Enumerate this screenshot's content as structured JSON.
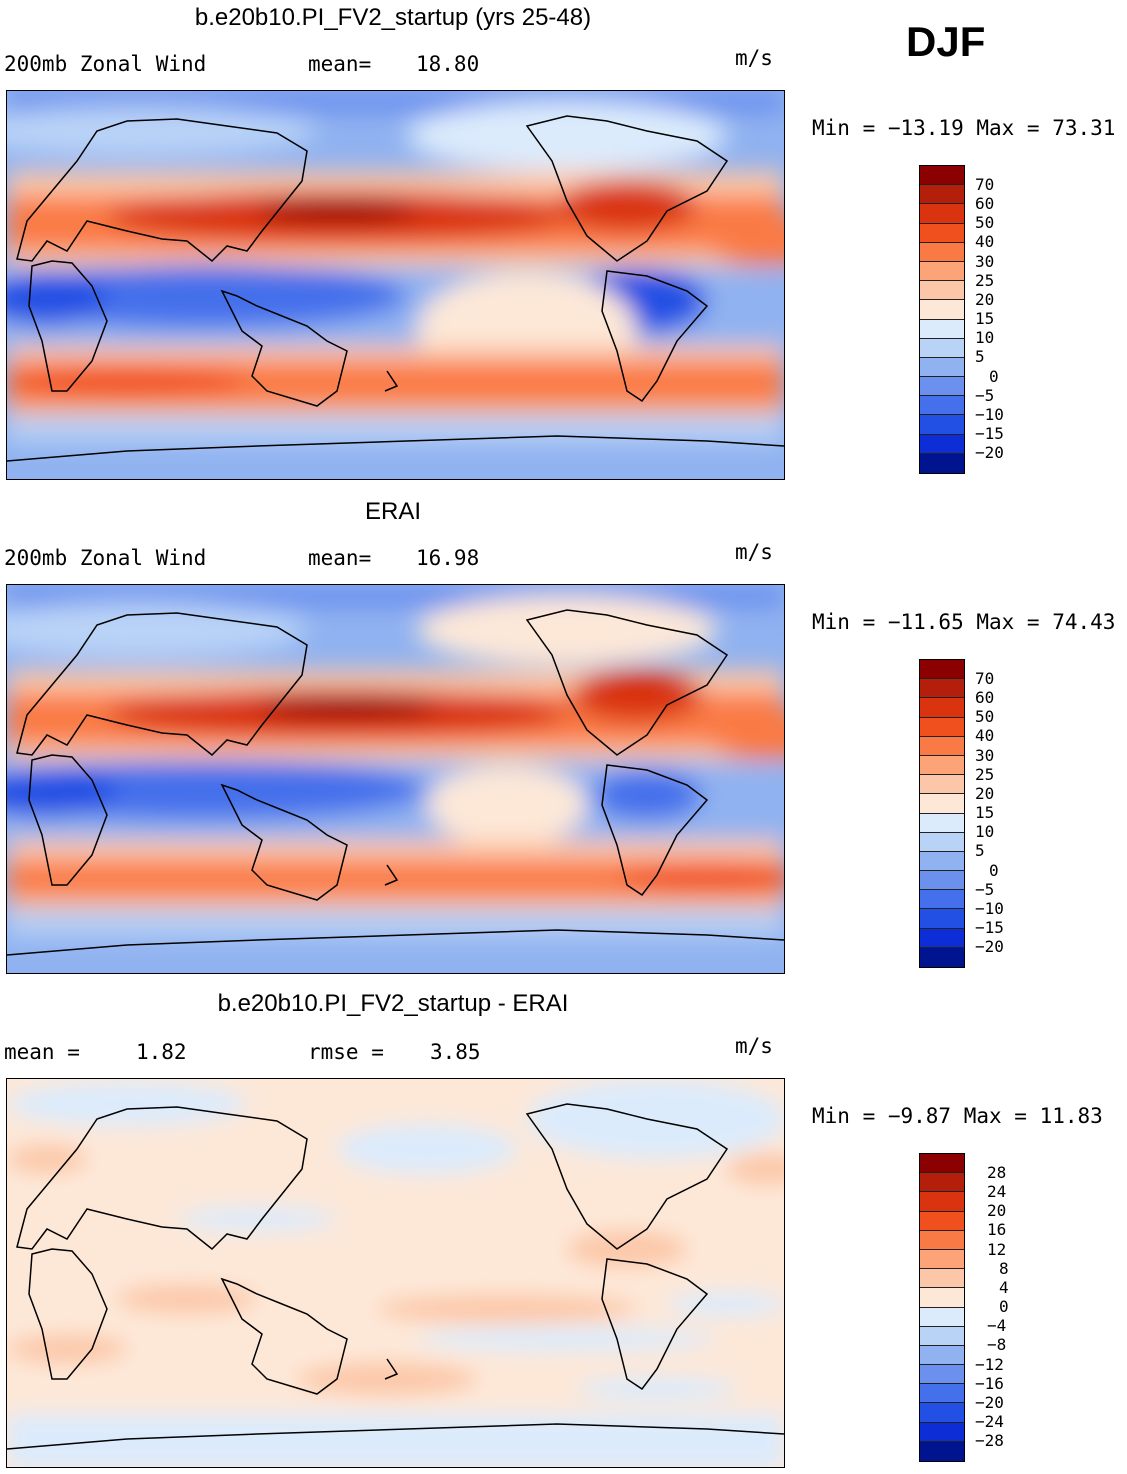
{
  "season_label": "DJF",
  "chart_data": [
    {
      "type": "heatmap",
      "title": "b.e20b10.PI_FV2_startup (yrs 25-48)",
      "left_label": "200mb Zonal Wind",
      "center_label": "mean=",
      "center_value": "18.80",
      "units": "m/s",
      "min_max": "Min = −13.19 Max =   73.31",
      "colorbar": {
        "levels": [
          "70",
          "60",
          "50",
          "40",
          "30",
          "25",
          "20",
          "15",
          "10",
          "5",
          "0",
          "−5",
          "−10",
          "−15",
          "−20"
        ],
        "colors": [
          "#8b0000",
          "#b31f0a",
          "#d93310",
          "#f0501e",
          "#fa7a45",
          "#fca377",
          "#fcc7a8",
          "#fde8d8",
          "#dcebfc",
          "#b9d3f7",
          "#90b2f0",
          "#6b90ee",
          "#4570eb",
          "#2350e4",
          "#0d2ed6",
          "#00148f"
        ]
      },
      "x_range_deg": [
        0,
        360
      ],
      "y_range_deg": [
        -90,
        90
      ],
      "features": [
        {
          "band": "NH jet",
          "peak_lon": 150,
          "peak_lat": 32,
          "peak_value": 73
        },
        {
          "band": "tropical easterlies",
          "lon": 20,
          "lat": -10,
          "value": -13
        },
        {
          "band": "tropical easterlies",
          "lon": 290,
          "lat": -10,
          "value": -10
        },
        {
          "band": "SH jet",
          "lat": -48,
          "value": 40
        }
      ]
    },
    {
      "type": "heatmap",
      "title": "ERAI",
      "left_label": "200mb Zonal Wind",
      "center_label": "mean=",
      "center_value": "16.98",
      "units": "m/s",
      "min_max": "Min = −11.65 Max =   74.43",
      "colorbar": {
        "levels": [
          "70",
          "60",
          "50",
          "40",
          "30",
          "25",
          "20",
          "15",
          "10",
          "5",
          "0",
          "−5",
          "−10",
          "−15",
          "−20"
        ],
        "colors": [
          "#8b0000",
          "#b31f0a",
          "#d93310",
          "#f0501e",
          "#fa7a45",
          "#fca377",
          "#fcc7a8",
          "#fde8d8",
          "#dcebfc",
          "#b9d3f7",
          "#90b2f0",
          "#6b90ee",
          "#4570eb",
          "#2350e4",
          "#0d2ed6",
          "#00148f"
        ]
      },
      "x_range_deg": [
        0,
        360
      ],
      "y_range_deg": [
        -90,
        90
      ],
      "features": [
        {
          "band": "NH jet",
          "peak_lon": 150,
          "peak_lat": 32,
          "peak_value": 74
        },
        {
          "band": "tropical easterlies",
          "lon": 15,
          "lat": -10,
          "value": -11
        },
        {
          "band": "tropical easterlies",
          "lon": 295,
          "lat": -10,
          "value": -8
        },
        {
          "band": "SH jet",
          "lat": -48,
          "value": 35
        }
      ]
    },
    {
      "type": "heatmap",
      "title": "b.e20b10.PI_FV2_startup - ERAI",
      "left_label": "mean =",
      "left_value": "1.82",
      "center_label": "rmse =",
      "center_value": "3.85",
      "units": "m/s",
      "min_max": "Min =   −9.87 Max =   11.83",
      "colorbar": {
        "levels": [
          "28",
          "24",
          "20",
          "16",
          "12",
          "8",
          "4",
          "0",
          "−4",
          "−8",
          "−12",
          "−16",
          "−20",
          "−24",
          "−28"
        ],
        "colors": [
          "#8b0000",
          "#b31f0a",
          "#d93310",
          "#f0501e",
          "#fa7a45",
          "#fca377",
          "#fcc7a8",
          "#fde8d8",
          "#dcebfc",
          "#b9d3f7",
          "#90b2f0",
          "#6b90ee",
          "#4570eb",
          "#2350e4",
          "#0d2ed6",
          "#00148f"
        ]
      },
      "x_range_deg": [
        0,
        360
      ],
      "y_range_deg": [
        -90,
        90
      ]
    }
  ]
}
